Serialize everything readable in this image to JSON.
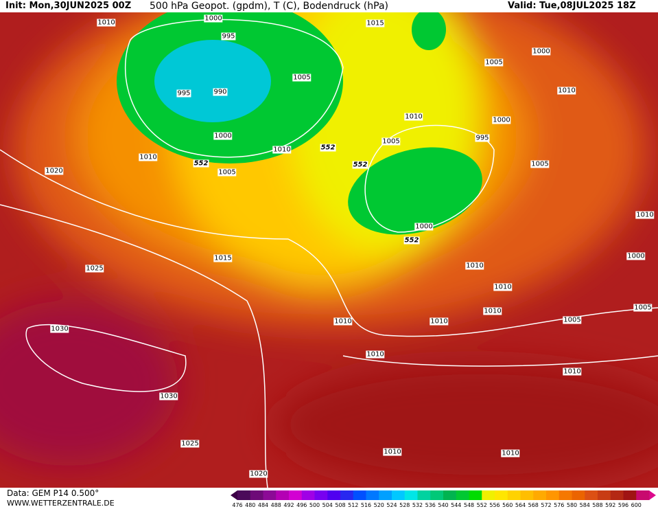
{
  "header": {
    "init": "Init: Mon,30JUN2025 00Z",
    "title": "500 hPa Geopot. (gpdm), T (C), Bodendruck (hPa)",
    "valid": "Valid: Tue,08JUL2025 18Z"
  },
  "isobars": [
    1010,
    1000,
    995,
    995,
    990,
    1005,
    1000,
    1010,
    1010,
    1005,
    1020,
    552,
    552,
    552,
    1015,
    1005,
    1000,
    1010,
    1010,
    1000,
    995,
    1005,
    1005,
    1000,
    552,
    1015,
    1025,
    1010,
    1010,
    1010,
    1010,
    1010,
    1005,
    1005,
    1000,
    1010,
    1030,
    1010,
    1010,
    1030,
    1025,
    1010,
    1010,
    1020
  ],
  "footer": {
    "data": "Data: GEM P14 0.500°",
    "site": "WWW.WETTERZENTRALE.DE"
  },
  "colorbar": {
    "ticks": [
      476,
      480,
      484,
      488,
      492,
      496,
      500,
      504,
      508,
      512,
      516,
      520,
      524,
      528,
      532,
      536,
      540,
      544,
      548,
      552,
      556,
      560,
      564,
      568,
      572,
      576,
      580,
      584,
      588,
      592,
      596,
      600
    ],
    "colors": [
      "#4b0a5a",
      "#6e0a78",
      "#8c0a96",
      "#b400b4",
      "#d200d2",
      "#a000e6",
      "#7800f0",
      "#5000f0",
      "#2828f0",
      "#0050ff",
      "#0078ff",
      "#00a0ff",
      "#00c8ff",
      "#00e6e6",
      "#00d2a0",
      "#00c878",
      "#00b450",
      "#00c832",
      "#00dc00",
      "#f0f000",
      "#ffe600",
      "#ffd200",
      "#ffbe00",
      "#ffaa00",
      "#ff9600",
      "#f57800",
      "#eb6400",
      "#dc5014",
      "#c83c14",
      "#b42814",
      "#a01414",
      "#c80a6e"
    ]
  }
}
